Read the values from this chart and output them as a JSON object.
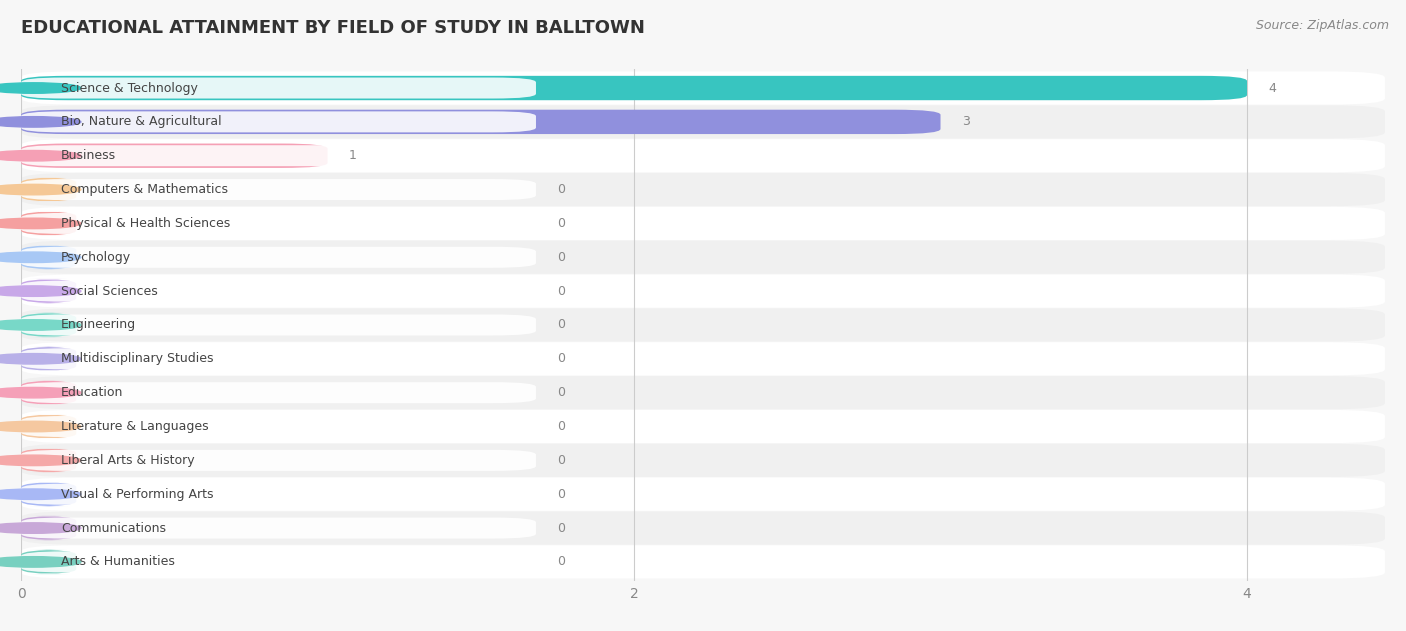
{
  "title": "EDUCATIONAL ATTAINMENT BY FIELD OF STUDY IN BALLTOWN",
  "source": "Source: ZipAtlas.com",
  "categories": [
    "Science & Technology",
    "Bio, Nature & Agricultural",
    "Business",
    "Computers & Mathematics",
    "Physical & Health Sciences",
    "Psychology",
    "Social Sciences",
    "Engineering",
    "Multidisciplinary Studies",
    "Education",
    "Literature & Languages",
    "Liberal Arts & History",
    "Visual & Performing Arts",
    "Communications",
    "Arts & Humanities"
  ],
  "values": [
    4,
    3,
    1,
    0,
    0,
    0,
    0,
    0,
    0,
    0,
    0,
    0,
    0,
    0,
    0
  ],
  "bar_colors": [
    "#38c5c0",
    "#9090dd",
    "#f5a0b5",
    "#f5c896",
    "#f5a0a0",
    "#a8c8f5",
    "#c8a8e8",
    "#78d8c8",
    "#b8b0e8",
    "#f5a0b8",
    "#f5c8a0",
    "#f5a8a8",
    "#a8b8f5",
    "#c8a8d8",
    "#78d0c0"
  ],
  "xlim_max": 4.45,
  "xticks": [
    0,
    2,
    4
  ],
  "background_color": "#f7f7f7",
  "row_colors": [
    "#ffffff",
    "#f0f0f0"
  ],
  "title_fontsize": 13,
  "label_fontsize": 9,
  "value_fontsize": 9,
  "source_fontsize": 9
}
